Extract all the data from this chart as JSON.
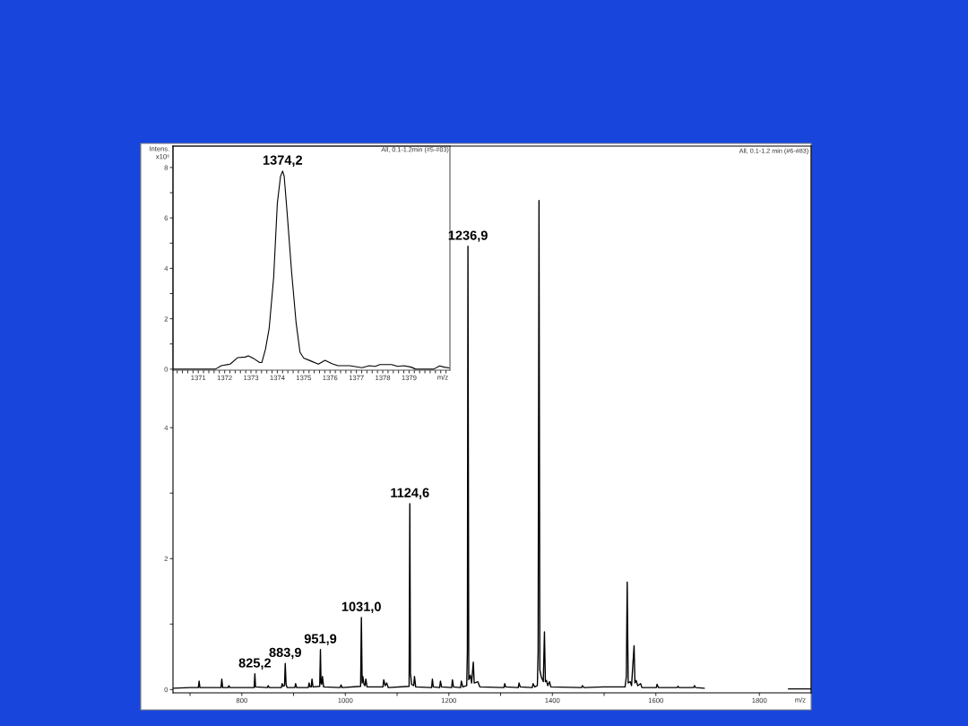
{
  "chart_data": [
    {
      "type": "line",
      "color": "#000000",
      "xlabel": "m/z",
      "x": [
        667,
        700,
        716,
        717.5,
        719,
        759.8,
        761.3,
        763,
        773.5,
        775,
        777,
        823.8,
        825.2,
        826.5,
        849.3,
        850.8,
        853,
        876.4,
        877.9,
        880,
        882.5,
        883.9,
        885.5,
        887.5,
        902.4,
        903.9,
        906,
        928.4,
        929.9,
        932,
        934.1,
        935.6,
        937.5,
        950.5,
        951.9,
        953,
        954.3,
        955.8,
        958,
        990.1,
        991.6,
        994,
        1029.5,
        1031.0,
        1032.5,
        1033.8,
        1036,
        1038,
        1039.5,
        1042,
        1072.7,
        1074.2,
        1077,
        1080,
        1083,
        1123.2,
        1124.6,
        1125.8,
        1128,
        1132.1,
        1133.6,
        1136,
        1166.7,
        1168.2,
        1170,
        1182.3,
        1183.8,
        1186,
        1205.4,
        1206.9,
        1209,
        1222.7,
        1224.2,
        1227,
        1234.5,
        1235.8,
        1236.9,
        1238.5,
        1241.6,
        1244,
        1247.3,
        1249,
        1256,
        1260,
        1306.4,
        1307.9,
        1310,
        1334.1,
        1335.6,
        1338,
        1361.2,
        1362.7,
        1366,
        1371,
        1372.5,
        1374.2,
        1375.8,
        1378.4,
        1382.5,
        1384.7,
        1386.5,
        1388.7,
        1391,
        1394.5,
        1397,
        1456.5,
        1458,
        1461,
        1498.4,
        1540.5,
        1542.9,
        1544.6,
        1546.5,
        1550.4,
        1553,
        1557.9,
        1559.5,
        1561.9,
        1565,
        1570.6,
        1573,
        1600.8,
        1602.3,
        1605,
        1641.2,
        1642.7,
        1645,
        1673,
        1674.5,
        1677,
        1693.6,
        1775,
        1856,
        1900
      ],
      "values": [
        0.02,
        0.03,
        0.03,
        0.13,
        0.03,
        0.03,
        0.16,
        0.03,
        0.03,
        0.06,
        0.03,
        0.03,
        0.24,
        0.04,
        0.03,
        0.06,
        0.03,
        0.03,
        0.09,
        0.05,
        0.06,
        0.4,
        0.08,
        0.03,
        0.03,
        0.09,
        0.03,
        0.03,
        0.1,
        0.04,
        0.04,
        0.16,
        0.04,
        0.05,
        0.61,
        0.1,
        0.08,
        0.2,
        0.04,
        0.03,
        0.07,
        0.03,
        0.05,
        1.1,
        0.1,
        0.2,
        0.08,
        0.06,
        0.16,
        0.04,
        0.04,
        0.15,
        0.06,
        0.1,
        0.03,
        0.05,
        2.84,
        0.25,
        0.08,
        0.06,
        0.2,
        0.04,
        0.03,
        0.16,
        0.04,
        0.03,
        0.13,
        0.04,
        0.03,
        0.15,
        0.04,
        0.03,
        0.13,
        0.04,
        0.06,
        0.58,
        6.77,
        0.15,
        0.22,
        0.1,
        0.42,
        0.1,
        0.12,
        0.04,
        0.03,
        0.09,
        0.04,
        0.03,
        0.1,
        0.04,
        0.03,
        0.09,
        0.04,
        0.06,
        0.57,
        7.47,
        0.3,
        0.2,
        0.12,
        0.88,
        0.12,
        0.14,
        0.06,
        0.12,
        0.04,
        0.03,
        0.06,
        0.03,
        0.04,
        0.04,
        0.2,
        1.64,
        0.1,
        0.12,
        0.06,
        0.67,
        0.1,
        0.14,
        0.06,
        0.09,
        0.03,
        0.03,
        0.08,
        0.03,
        0.03,
        0.05,
        0.03,
        0.03,
        0.06,
        0.03,
        0.02,
        null,
        0.01,
        0.01
      ],
      "xlim": [
        667,
        1900
      ],
      "ylim": [
        -0.05,
        8.3
      ],
      "xticks": [
        {
          "value": 700,
          "label": null
        },
        800,
        {
          "value": 900,
          "label": null
        },
        1000,
        {
          "value": 1100,
          "label": null
        },
        1200,
        {
          "value": 1300,
          "label": null
        },
        1400,
        {
          "value": 1500,
          "label": null
        },
        1600,
        1800
      ],
      "yticks": [
        0,
        {
          "value": 1,
          "label": null
        },
        2,
        {
          "value": 3,
          "label": null
        },
        4
      ],
      "annotations": [
        {
          "text": "825,2",
          "x": 825.2,
          "y": 0.24
        },
        {
          "text": "883,9",
          "x": 883.9,
          "y": 0.4
        },
        {
          "text": "951,9",
          "x": 951.9,
          "y": 0.61
        },
        {
          "text": "1031,0",
          "x": 1031.0,
          "y": 1.1
        },
        {
          "text": "1124,6",
          "x": 1124.6,
          "y": 2.84
        },
        {
          "text": "1236,9",
          "x": 1236.9,
          "y": 6.77
        },
        "All, 0.1-1.2 min (#6-#83)"
      ]
    },
    {
      "type": "line",
      "color": "#000000",
      "xlabel": "m/z",
      "ylabel": "Intens.\nx10⁶",
      "x": [
        1370.04,
        1371.65,
        1371.87,
        1372.21,
        1372.5,
        1372.78,
        1372.9,
        1373.12,
        1373.33,
        1373.41,
        1373.55,
        1373.69,
        1373.86,
        1374.0,
        1374.12,
        1374.2,
        1374.26,
        1374.37,
        1374.54,
        1374.71,
        1374.86,
        1375.0,
        1375.28,
        1375.56,
        1375.81,
        1376.07,
        1376.3,
        1376.75,
        1377.21,
        1377.49,
        1377.72,
        1377.89,
        1378.34,
        1378.57,
        1378.8,
        1379.08,
        1379.25,
        1379.93,
        1380.16,
        1380.33,
        1380.53
      ],
      "values": [
        0,
        0,
        0.14,
        0.2,
        0.46,
        0.48,
        0.53,
        0.41,
        0.26,
        0.26,
        0.79,
        1.62,
        3.63,
        6.58,
        7.65,
        7.86,
        7.65,
        6.23,
        3.87,
        1.86,
        0.67,
        0.44,
        0.32,
        0.2,
        0.35,
        0.22,
        0.14,
        0.14,
        0.06,
        0.14,
        0.11,
        0.18,
        0.18,
        0.11,
        0.14,
        0.08,
        0,
        0,
        0.13,
        0.08,
        0.05
      ],
      "xlim": [
        1370.04,
        1380.55
      ],
      "ylim": [
        -0.04,
        8.85
      ],
      "xticks": [
        {
          "value": 1370.2,
          "label": null
        },
        {
          "value": 1370.4,
          "label": null
        },
        {
          "value": 1370.6,
          "label": null
        },
        {
          "value": 1370.8,
          "label": null
        },
        1371,
        {
          "value": 1371.2,
          "label": null
        },
        {
          "value": 1371.4,
          "label": null
        },
        {
          "value": 1371.6,
          "label": null
        },
        {
          "value": 1371.8,
          "label": null
        },
        1372,
        {
          "value": 1372.2,
          "label": null
        },
        {
          "value": 1372.4,
          "label": null
        },
        {
          "value": 1372.6,
          "label": null
        },
        {
          "value": 1372.8,
          "label": null
        },
        1373,
        {
          "value": 1373.2,
          "label": null
        },
        {
          "value": 1373.4,
          "label": null
        },
        {
          "value": 1373.6,
          "label": null
        },
        {
          "value": 1373.8,
          "label": null
        },
        1374,
        {
          "value": 1374.2,
          "label": null
        },
        {
          "value": 1374.4,
          "label": null
        },
        {
          "value": 1374.6,
          "label": null
        },
        {
          "value": 1374.8,
          "label": null
        },
        1375,
        {
          "value": 1375.2,
          "label": null
        },
        {
          "value": 1375.4,
          "label": null
        },
        {
          "value": 1375.6,
          "label": null
        },
        {
          "value": 1375.8,
          "label": null
        },
        1376,
        {
          "value": 1376.2,
          "label": null
        },
        {
          "value": 1376.4,
          "label": null
        },
        {
          "value": 1376.6,
          "label": null
        },
        {
          "value": 1376.8,
          "label": null
        },
        1377,
        {
          "value": 1377.2,
          "label": null
        },
        {
          "value": 1377.4,
          "label": null
        },
        {
          "value": 1377.6,
          "label": null
        },
        {
          "value": 1377.8,
          "label": null
        },
        1378,
        {
          "value": 1378.2,
          "label": null
        },
        {
          "value": 1378.4,
          "label": null
        },
        {
          "value": 1378.6,
          "label": null
        },
        {
          "value": 1378.8,
          "label": null
        },
        1379,
        {
          "value": 1379.2,
          "label": null
        },
        {
          "value": 1379.4,
          "label": null
        },
        {
          "value": 1379.6,
          "label": null
        },
        {
          "value": 1379.8,
          "label": null
        },
        {
          "value": 1380,
          "label": null
        },
        {
          "value": 1380.2,
          "label": null
        },
        {
          "value": 1380.4,
          "label": null
        }
      ],
      "yticks": [
        0,
        {
          "value": 1,
          "label": null
        },
        2,
        {
          "value": 3,
          "label": null
        },
        4,
        {
          "value": 5,
          "label": null
        },
        6,
        {
          "value": 7,
          "label": null
        },
        8
      ],
      "annotations": [
        {
          "text": "1374,2",
          "x": 1374.2,
          "y": 7.86
        },
        "All, 0.1-1.2min (#5-#83)"
      ]
    }
  ]
}
